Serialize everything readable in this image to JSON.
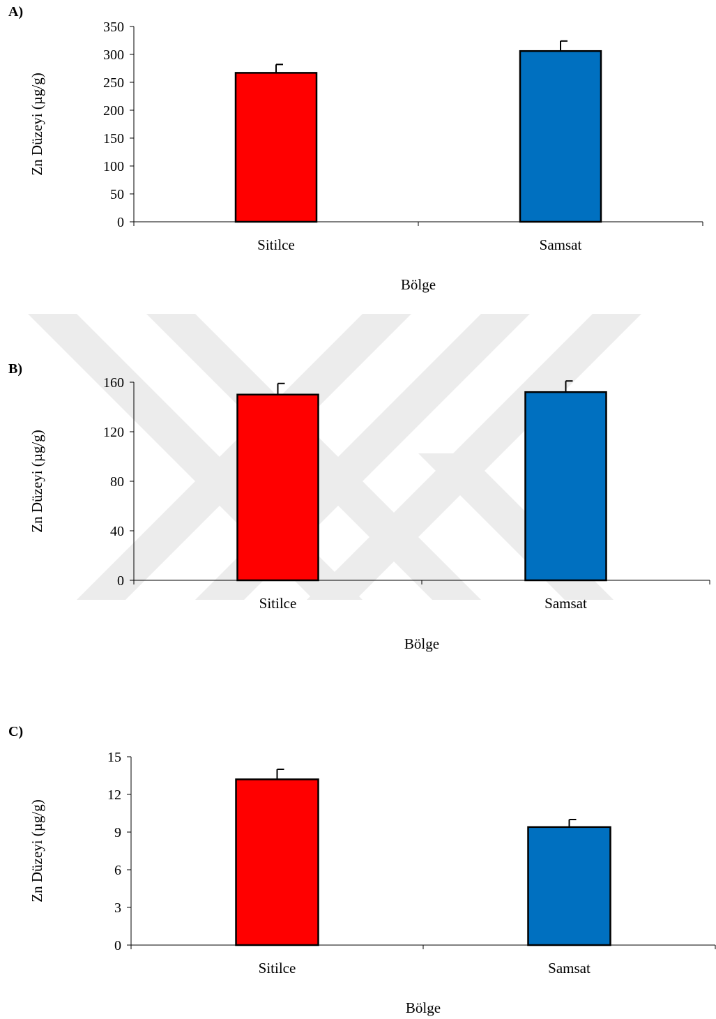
{
  "colors": {
    "Sitilce": "#ff0000",
    "Samsat": "#0070c0",
    "outline": "#000000",
    "watermark": "#e6e6e6"
  },
  "chart_data": [
    {
      "type": "bar",
      "panel_label": "A)",
      "categories": [
        "Sitilce",
        "Samsat"
      ],
      "values": [
        267,
        306
      ],
      "error": [
        15,
        18
      ],
      "xlabel": "Bölge",
      "ylabel": "Zn Düzeyi (µg/g)",
      "ylim": [
        0,
        350
      ],
      "yticks": [
        0,
        50,
        100,
        150,
        200,
        250,
        300,
        350
      ],
      "grid": false
    },
    {
      "type": "bar",
      "panel_label": "B)",
      "categories": [
        "Sitilce",
        "Samsat"
      ],
      "values": [
        150,
        152
      ],
      "error": [
        9,
        9
      ],
      "xlabel": "Bölge",
      "ylabel": "Zn Düzeyi (µg/g)",
      "ylim": [
        0,
        160
      ],
      "yticks": [
        0,
        40,
        80,
        120,
        160
      ],
      "grid": false
    },
    {
      "type": "bar",
      "panel_label": "C)",
      "categories": [
        "Sitilce",
        "Samsat"
      ],
      "values": [
        13.2,
        9.4
      ],
      "error": [
        0.8,
        0.6
      ],
      "xlabel": "Bölge",
      "ylabel": "Zn Düzeyi (µg/g)",
      "ylim": [
        0,
        15
      ],
      "yticks": [
        0,
        3,
        6,
        9,
        12,
        15
      ],
      "grid": false
    }
  ]
}
